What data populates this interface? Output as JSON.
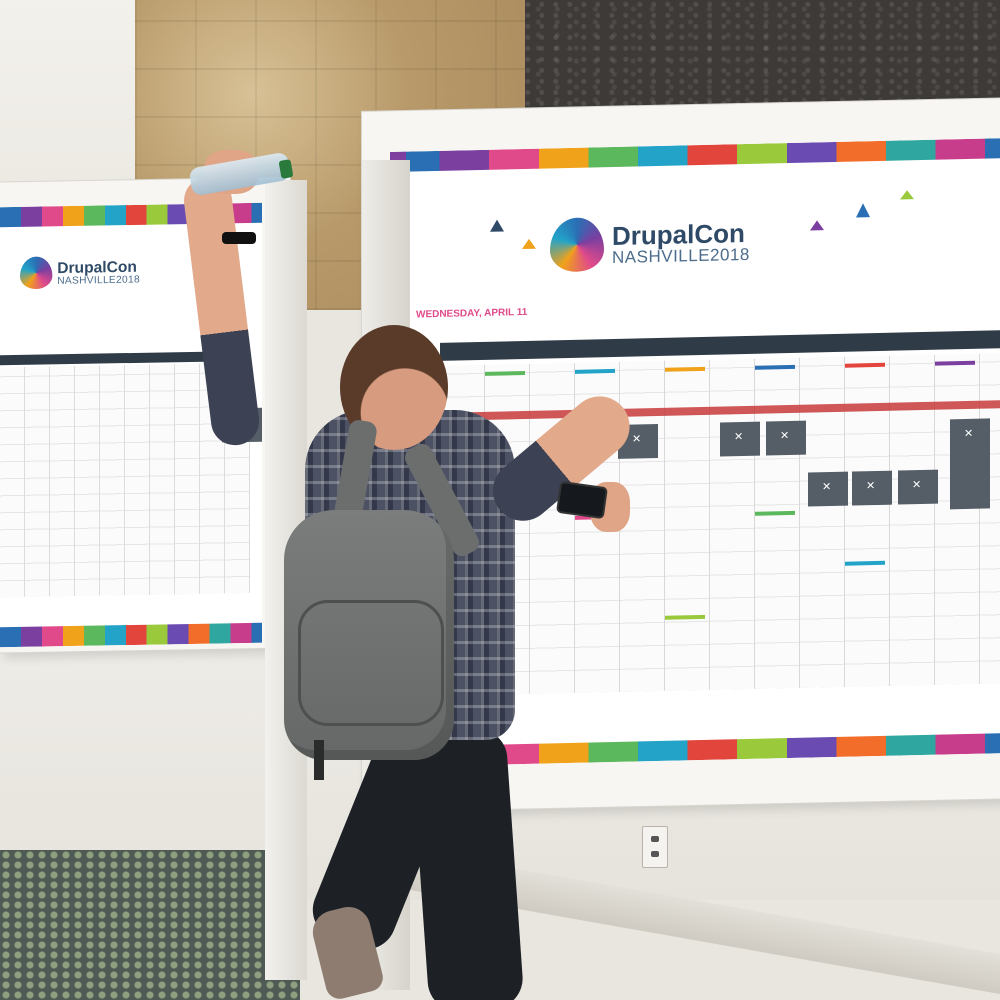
{
  "poster": {
    "brand_name": "DrupalCon",
    "brand_city": "NASHVILLE2018",
    "day_label": "WEDNESDAY, APRIL 11"
  },
  "left_poster": {
    "brand_name": "DrupalCon",
    "brand_city": "NASHVILLE2018"
  },
  "colors": {
    "brand_blue": "#2f4a66",
    "accent_pink": "#e04a8a",
    "header_dark": "#2f3b47"
  }
}
